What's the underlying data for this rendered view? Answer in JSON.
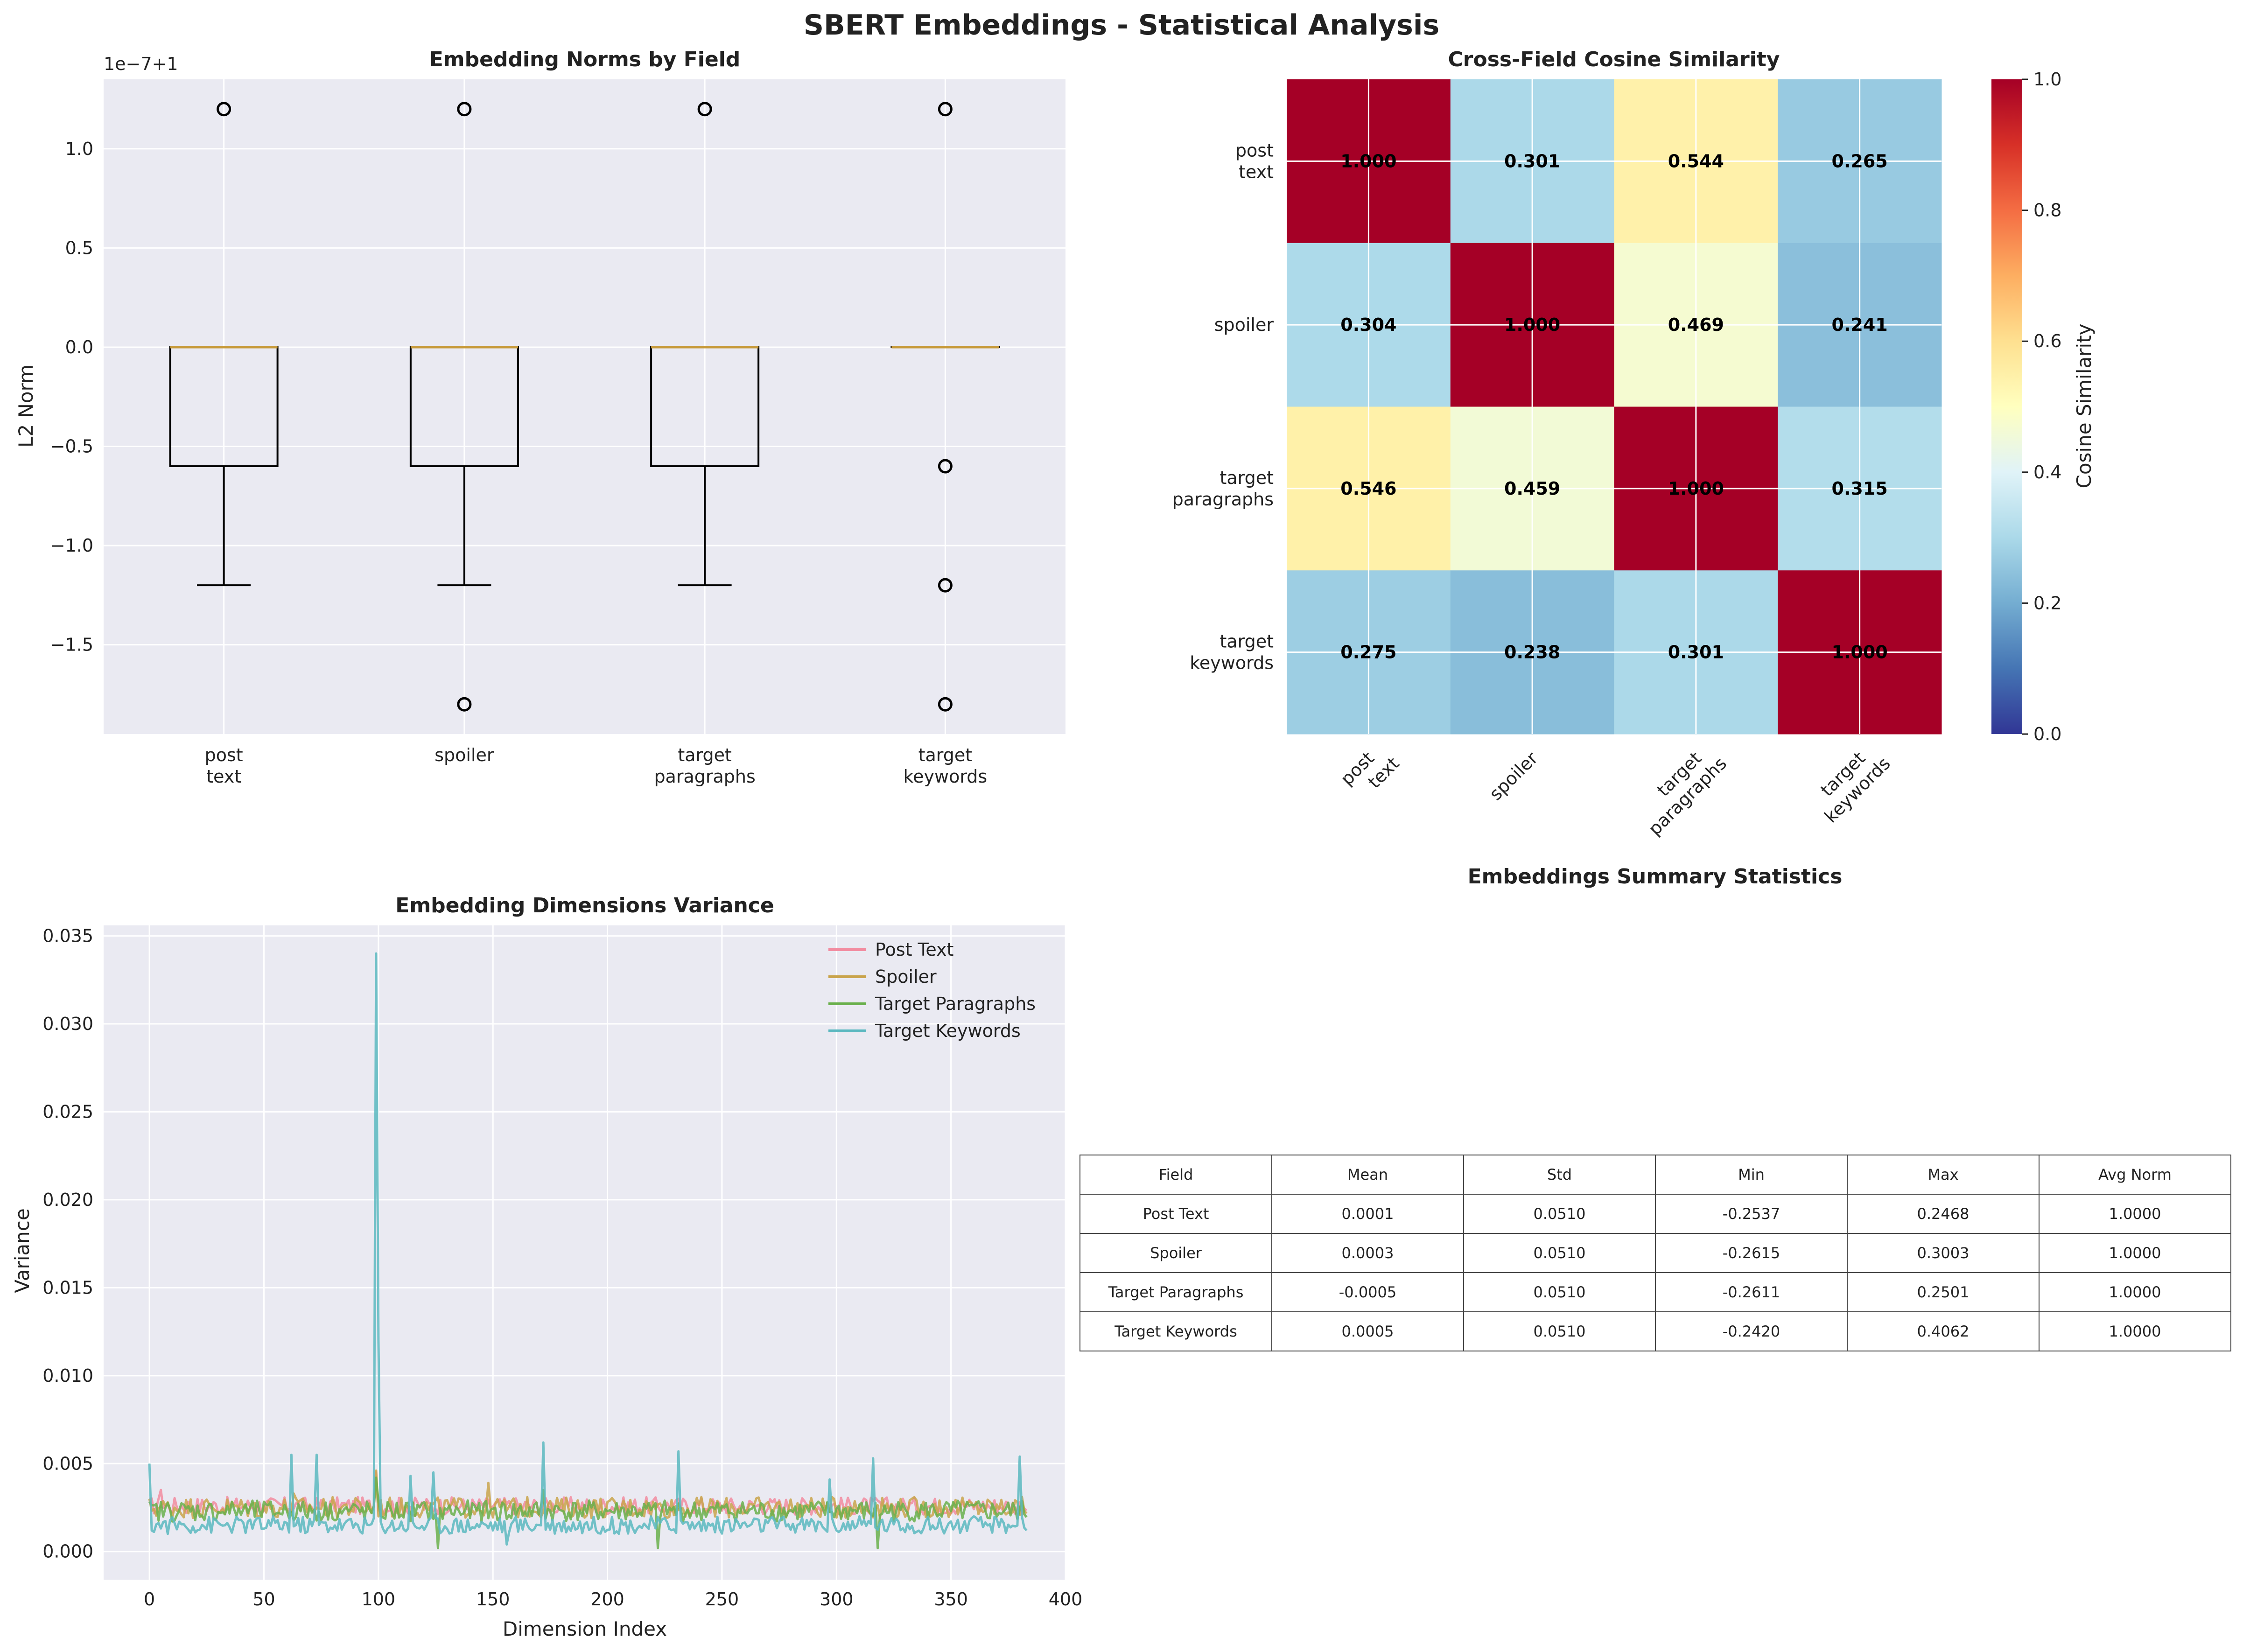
{
  "figure": {
    "suptitle": "SBERT Embeddings - Statistical Analysis"
  },
  "chart_data": [
    {
      "type": "box",
      "title": "Embedding Norms by Field",
      "ylabel": "L2 Norm",
      "offset_text": "1e−7+1",
      "categories": [
        "post\ntext",
        "spoiler",
        "target\nparagraphs",
        "target\nkeywords"
      ],
      "yticks": [
        1.0,
        0.5,
        0.0,
        -0.5,
        -1.0,
        -1.5
      ],
      "ytick_labels": [
        "1.0",
        "0.5",
        "0.0",
        "−0.5",
        "−1.0",
        "−1.5"
      ],
      "ylim": [
        -1.95,
        1.35
      ],
      "boxes": [
        {
          "whisker_low": -1.2,
          "q1": -0.6,
          "median": 0.0,
          "q3": 0.0,
          "whisker_high": 0.0,
          "outliers": [
            1.2
          ]
        },
        {
          "whisker_low": -1.2,
          "q1": -0.6,
          "median": 0.0,
          "q3": 0.0,
          "whisker_high": 0.0,
          "outliers": [
            1.2,
            -1.8
          ]
        },
        {
          "whisker_low": -1.2,
          "q1": -0.6,
          "median": 0.0,
          "q3": 0.0,
          "whisker_high": 0.0,
          "outliers": [
            1.2
          ]
        },
        {
          "whisker_low": 0.0,
          "q1": 0.0,
          "median": 0.0,
          "q3": 0.0,
          "whisker_high": 0.0,
          "outliers": [
            1.2,
            -0.6,
            -1.2,
            -1.8
          ]
        }
      ]
    },
    {
      "type": "heatmap",
      "title": "Cross-Field Cosine Similarity",
      "row_labels": [
        "post\ntext",
        "spoiler",
        "target\nparagraphs",
        "target\nkeywords"
      ],
      "col_labels": [
        "post\ntext",
        "spoiler",
        "target\nparagraphs",
        "target\nkeywords"
      ],
      "values": [
        [
          1.0,
          0.301,
          0.544,
          0.265
        ],
        [
          0.304,
          1.0,
          0.469,
          0.241
        ],
        [
          0.546,
          0.459,
          1.0,
          0.315
        ],
        [
          0.275,
          0.238,
          0.301,
          1.0
        ]
      ],
      "value_labels": [
        [
          "1.000",
          "0.301",
          "0.544",
          "0.265"
        ],
        [
          "0.304",
          "1.000",
          "0.469",
          "0.241"
        ],
        [
          "0.546",
          "0.459",
          "1.000",
          "0.315"
        ],
        [
          "0.275",
          "0.238",
          "0.301",
          "1.000"
        ]
      ],
      "colormap": "RdYlBu_r",
      "vmin": 0.0,
      "vmax": 1.0,
      "colorbar_label": "Cosine Similarity",
      "colorbar_ticks": [
        0.0,
        0.2,
        0.4,
        0.6,
        0.8,
        1.0
      ],
      "colorbar_tick_labels": [
        "0.0",
        "0.2",
        "0.4",
        "0.6",
        "0.8",
        "1.0"
      ]
    },
    {
      "type": "line",
      "title": "Embedding Dimensions Variance",
      "xlabel": "Dimension Index",
      "ylabel": "Variance",
      "xlim": [
        -20,
        400
      ],
      "ylim": [
        -0.0016,
        0.0356
      ],
      "xticks": [
        0,
        50,
        100,
        150,
        200,
        250,
        300,
        350,
        400
      ],
      "xtick_labels": [
        "0",
        "50",
        "100",
        "150",
        "200",
        "250",
        "300",
        "350",
        "400"
      ],
      "yticks": [
        0.0,
        0.005,
        0.01,
        0.015,
        0.02,
        0.025,
        0.03,
        0.035
      ],
      "ytick_labels": [
        "0.000",
        "0.005",
        "0.010",
        "0.015",
        "0.020",
        "0.025",
        "0.030",
        "0.035"
      ],
      "legend_position": "upper right",
      "n_points": 384,
      "series": [
        {
          "name": "Post Text",
          "color": "#f28ca0",
          "base": 0.0026,
          "amp": 0.0005,
          "spikes": [
            [
              99,
              0.0045
            ],
            [
              5,
              0.0035
            ]
          ]
        },
        {
          "name": "Spoiler",
          "color": "#c9a44c",
          "base": 0.0025,
          "amp": 0.0006,
          "spikes": [
            [
              99,
              0.0046
            ],
            [
              148,
              0.0039
            ],
            [
              63,
              0.0033
            ]
          ]
        },
        {
          "name": "Target Paragraphs",
          "color": "#6ab04c",
          "base": 0.0023,
          "amp": 0.0006,
          "spikes": [
            [
              99,
              0.0042
            ],
            [
              172,
              0.0035
            ],
            [
              222,
              0.0002
            ],
            [
              318,
              0.0002
            ],
            [
              126,
              0.0002
            ]
          ]
        },
        {
          "name": "Target Keywords",
          "color": "#5bb8c0",
          "base": 0.0015,
          "amp": 0.0005,
          "spikes": [
            [
              0,
              0.005
            ],
            [
              62,
              0.0055
            ],
            [
              73,
              0.0055
            ],
            [
              99,
              0.034
            ],
            [
              100,
              0.012
            ],
            [
              114,
              0.0043
            ],
            [
              124,
              0.0045
            ],
            [
              172,
              0.0062
            ],
            [
              231,
              0.0057
            ],
            [
              297,
              0.0041
            ],
            [
              316,
              0.0053
            ],
            [
              380,
              0.0054
            ],
            [
              156,
              0.0004
            ]
          ]
        }
      ]
    },
    {
      "type": "table",
      "title": "Embeddings Summary Statistics",
      "columns": [
        "Field",
        "Mean",
        "Std",
        "Min",
        "Max",
        "Avg Norm"
      ],
      "rows": [
        [
          "Post Text",
          "0.0001",
          "0.0510",
          "-0.2537",
          "0.2468",
          "1.0000"
        ],
        [
          "Spoiler",
          "0.0003",
          "0.0510",
          "-0.2615",
          "0.3003",
          "1.0000"
        ],
        [
          "Target Paragraphs",
          "-0.0005",
          "0.0510",
          "-0.2611",
          "0.2501",
          "1.0000"
        ],
        [
          "Target Keywords",
          "0.0005",
          "0.0510",
          "-0.2420",
          "0.4062",
          "1.0000"
        ]
      ]
    }
  ]
}
